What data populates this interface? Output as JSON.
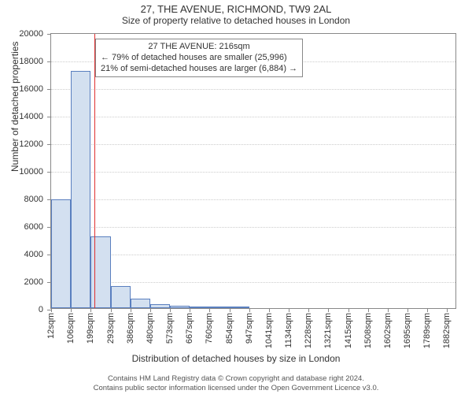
{
  "title": "27, THE AVENUE, RICHMOND, TW9 2AL",
  "subtitle": "Size of property relative to detached houses in London",
  "ylabel": "Number of detached properties",
  "xlabel": "Distribution of detached houses by size in London",
  "footnote1": "Contains HM Land Registry data © Crown copyright and database right 2024.",
  "footnote2": "Contains public sector information licensed under the Open Government Licence v3.0.",
  "chart": {
    "type": "histogram",
    "ylim": [
      0,
      20000
    ],
    "ytick_step": 2000,
    "background_color": "#ffffff",
    "grid_color": "#cccccc",
    "axis_color": "#888888",
    "tick_fontsize": 11,
    "label_fontsize": 12,
    "bar_fill": "#d3e0f0",
    "bar_border": "#5a7fbf",
    "xticks": [
      {
        "pos": 12,
        "label": "12sqm"
      },
      {
        "pos": 106,
        "label": "106sqm"
      },
      {
        "pos": 199,
        "label": "199sqm"
      },
      {
        "pos": 293,
        "label": "293sqm"
      },
      {
        "pos": 386,
        "label": "386sqm"
      },
      {
        "pos": 480,
        "label": "480sqm"
      },
      {
        "pos": 573,
        "label": "573sqm"
      },
      {
        "pos": 667,
        "label": "667sqm"
      },
      {
        "pos": 760,
        "label": "760sqm"
      },
      {
        "pos": 854,
        "label": "854sqm"
      },
      {
        "pos": 947,
        "label": "947sqm"
      },
      {
        "pos": 1041,
        "label": "1041sqm"
      },
      {
        "pos": 1134,
        "label": "1134sqm"
      },
      {
        "pos": 1228,
        "label": "1228sqm"
      },
      {
        "pos": 1321,
        "label": "1321sqm"
      },
      {
        "pos": 1415,
        "label": "1415sqm"
      },
      {
        "pos": 1508,
        "label": "1508sqm"
      },
      {
        "pos": 1602,
        "label": "1602sqm"
      },
      {
        "pos": 1695,
        "label": "1695sqm"
      },
      {
        "pos": 1789,
        "label": "1789sqm"
      },
      {
        "pos": 1882,
        "label": "1882sqm"
      }
    ],
    "x_domain": [
      12,
      1929
    ],
    "bars": [
      {
        "x0": 12,
        "x1": 106,
        "value": 7900
      },
      {
        "x0": 106,
        "x1": 199,
        "value": 17200
      },
      {
        "x0": 199,
        "x1": 293,
        "value": 5200
      },
      {
        "x0": 293,
        "x1": 386,
        "value": 1600
      },
      {
        "x0": 386,
        "x1": 480,
        "value": 700
      },
      {
        "x0": 480,
        "x1": 573,
        "value": 300
      },
      {
        "x0": 573,
        "x1": 667,
        "value": 200
      },
      {
        "x0": 667,
        "x1": 760,
        "value": 100
      },
      {
        "x0": 760,
        "x1": 854,
        "value": 60
      },
      {
        "x0": 854,
        "x1": 947,
        "value": 40
      }
    ],
    "reference_line": {
      "x": 216,
      "color": "#e03030",
      "width": 1
    },
    "annotation": {
      "line1": "27 THE AVENUE: 216sqm",
      "line2": "← 79% of detached houses are smaller (25,996)",
      "line3": "21% of semi-detached houses are larger (6,884) →",
      "border_color": "#888888",
      "bg_color": "#ffffff",
      "fontsize": 11
    }
  }
}
